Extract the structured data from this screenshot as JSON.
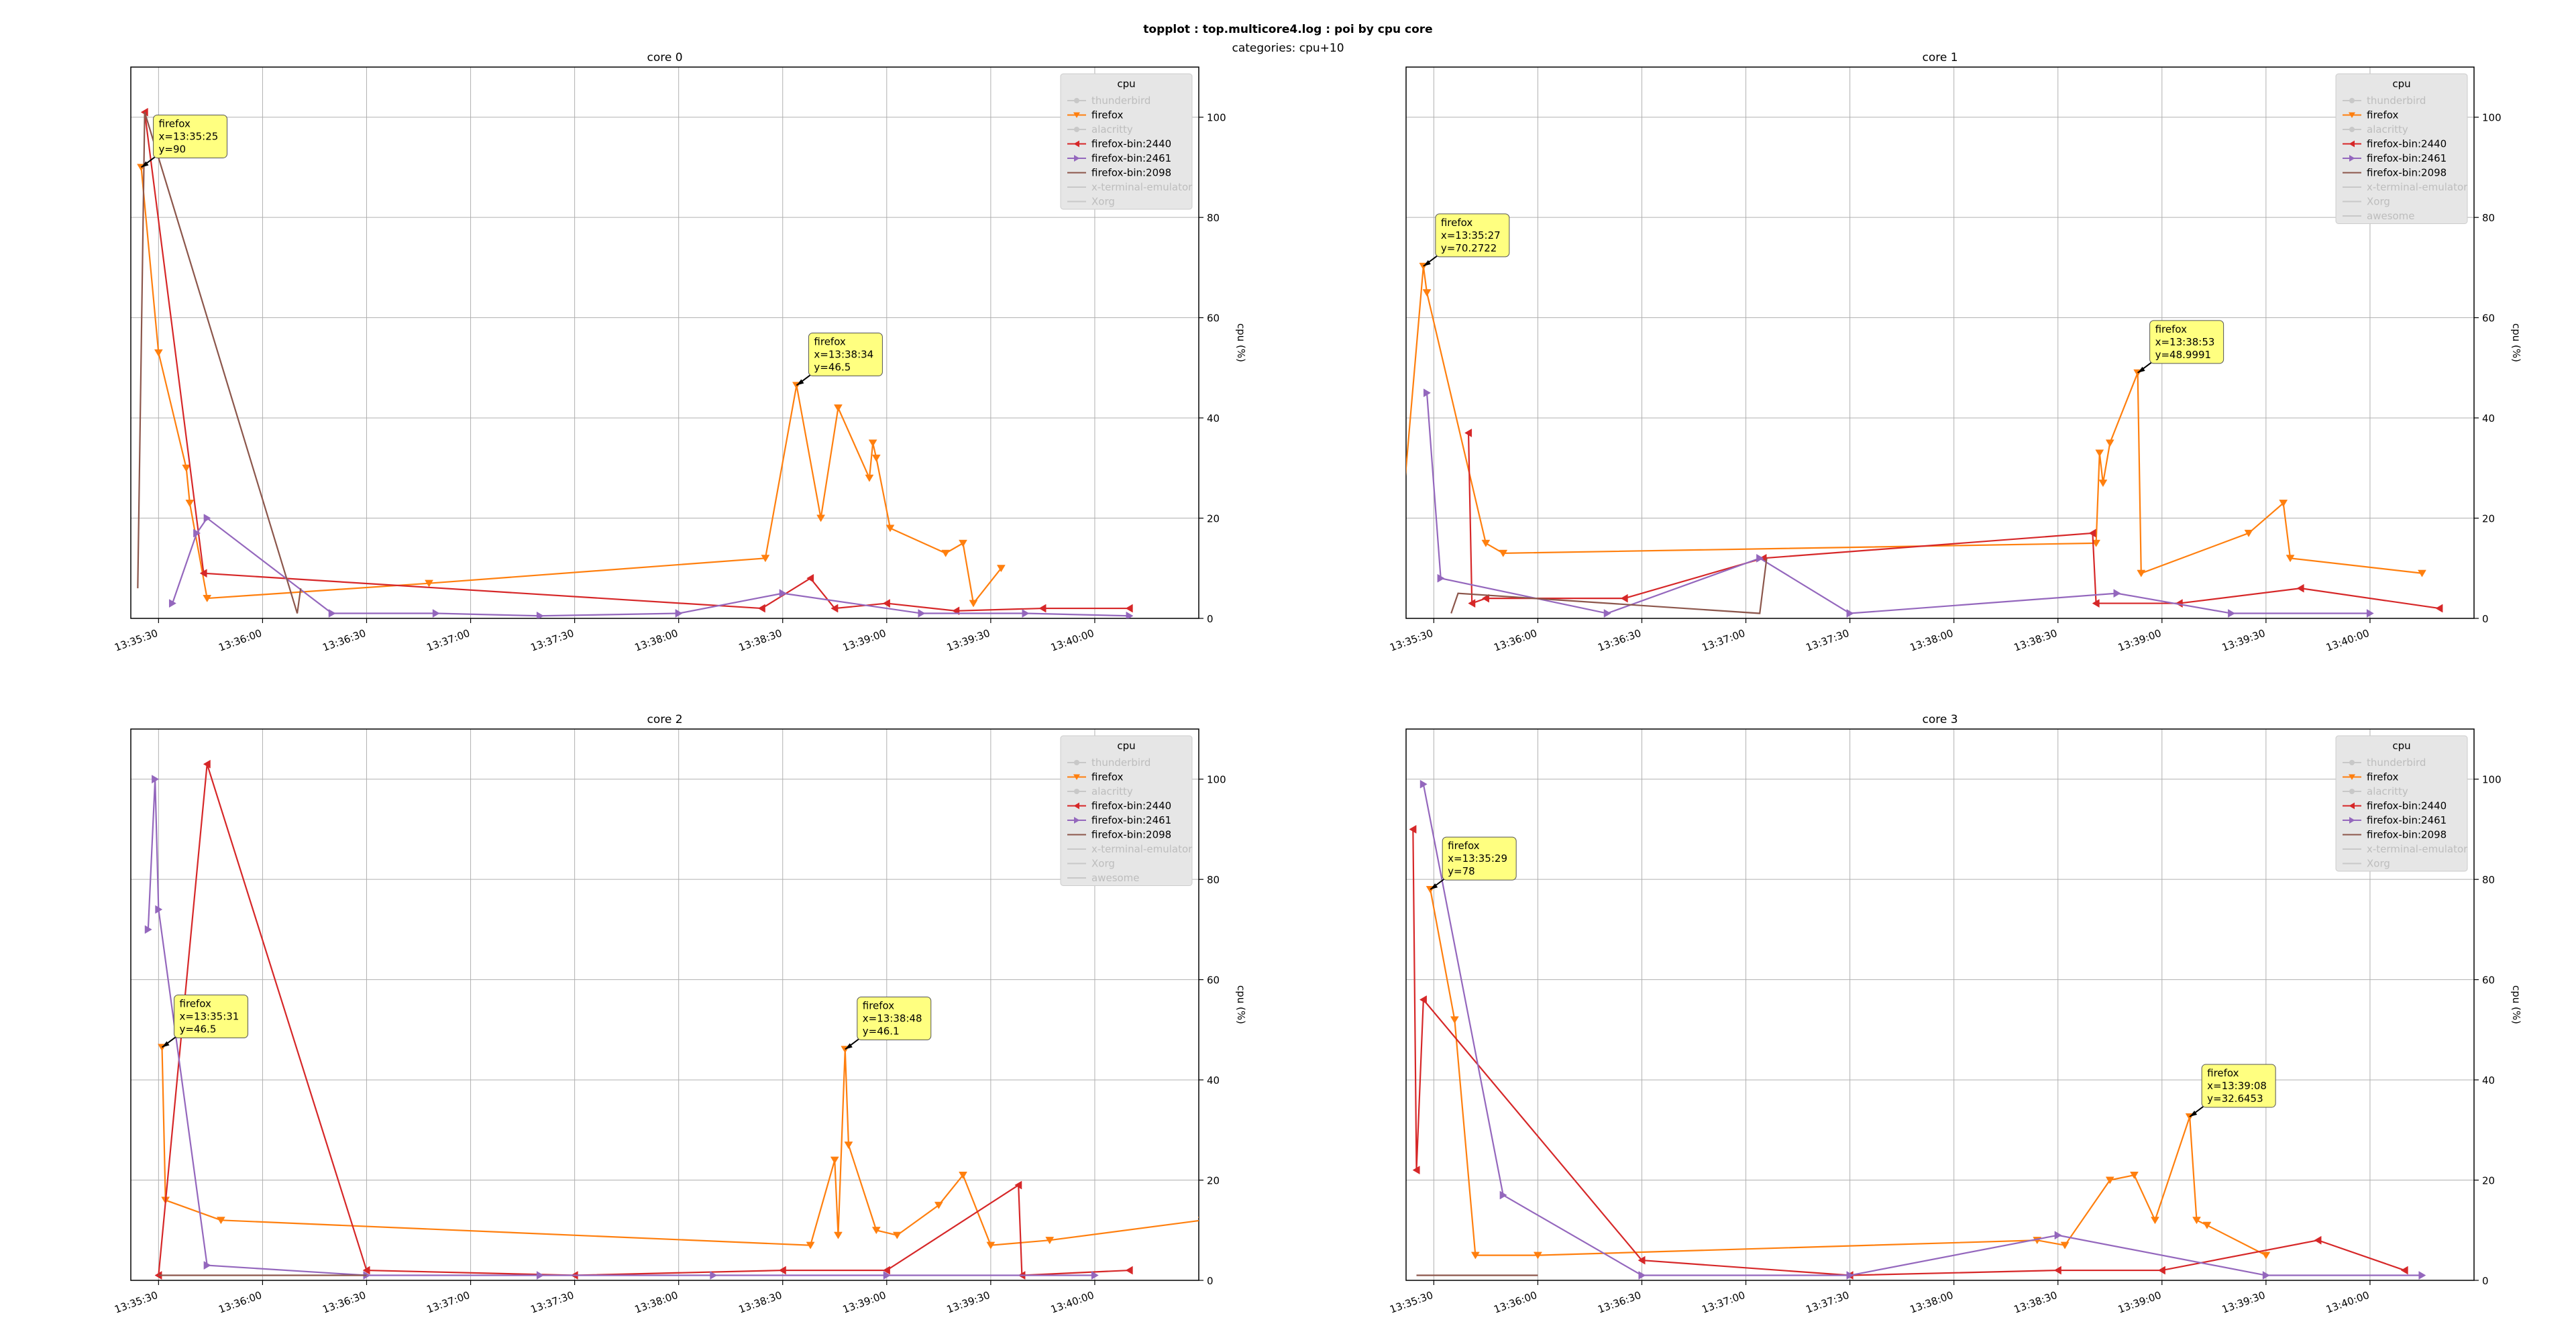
{
  "figure": {
    "title": "topplot : top.multicore4.log : poi by cpu core",
    "subtitle": "categories: cpu+10"
  },
  "colors": {
    "thunderbird": "#7fb2e5",
    "firefox": "#ff7f0e",
    "alacritty": "#98df8a",
    "firefox-bin:2440": "#d62728",
    "firefox-bin:2461": "#9467bd",
    "firefox-bin:2098": "#8c564b",
    "x-terminal-emulator": "#cccccc",
    "Xorg": "#cccccc",
    "awesome": "#cccccc",
    "annotation_fill": "#ffff80",
    "grid": "#b0b0b0"
  },
  "chart_data": [
    {
      "type": "line",
      "title": "core 0",
      "ylabel": "cpu (%)",
      "ylim": [
        0,
        110
      ],
      "xlim": [
        "13:35:30",
        "13:40:30"
      ],
      "xticks": [
        "13:35:30",
        "13:36:00",
        "13:36:30",
        "13:37:00",
        "13:37:30",
        "13:38:00",
        "13:38:30",
        "13:39:00",
        "13:39:30",
        "13:40:00"
      ],
      "yticks": [
        0,
        20,
        40,
        60,
        80,
        100
      ],
      "grid": true,
      "legend": {
        "title": "cpu",
        "placement": "top-right",
        "entries": [
          {
            "label": "thunderbird",
            "active": false
          },
          {
            "label": "firefox",
            "active": true
          },
          {
            "label": "alacritty",
            "active": false
          },
          {
            "label": "firefox-bin:2440",
            "active": true
          },
          {
            "label": "firefox-bin:2461",
            "active": true
          },
          {
            "label": "firefox-bin:2098",
            "active": true
          },
          {
            "label": "x-terminal-emulator",
            "active": false
          },
          {
            "label": "Xorg",
            "active": false
          }
        ]
      },
      "series": [
        {
          "name": "firefox",
          "marker": "down",
          "points": [
            [
              "13:35:25",
              90
            ],
            [
              "13:35:30",
              53
            ],
            [
              "13:35:38",
              30
            ],
            [
              "13:35:39",
              23
            ],
            [
              "13:35:44",
              4
            ],
            [
              "13:36:48",
              7
            ],
            [
              "13:38:25",
              12
            ],
            [
              "13:38:34",
              46.5
            ],
            [
              "13:38:41",
              20
            ],
            [
              "13:38:46",
              42
            ],
            [
              "13:38:55",
              28
            ],
            [
              "13:38:56",
              35
            ],
            [
              "13:38:57",
              32
            ],
            [
              "13:39:01",
              18
            ],
            [
              "13:39:17",
              13
            ],
            [
              "13:39:22",
              15
            ],
            [
              "13:39:25",
              3
            ],
            [
              "13:39:33",
              10
            ]
          ]
        },
        {
          "name": "firefox-bin:2440",
          "marker": "left",
          "points": [
            [
              "13:35:26",
              101
            ],
            [
              "13:35:43",
              9
            ],
            [
              "13:38:24",
              2
            ],
            [
              "13:38:38",
              8
            ],
            [
              "13:38:45",
              2
            ],
            [
              "13:39:00",
              3
            ],
            [
              "13:39:20",
              1.5
            ],
            [
              "13:39:45",
              2
            ],
            [
              "13:40:10",
              2
            ]
          ]
        },
        {
          "name": "firefox-bin:2461",
          "marker": "right",
          "points": [
            [
              "13:35:34",
              3
            ],
            [
              "13:35:41",
              17
            ],
            [
              "13:35:44",
              20
            ],
            [
              "13:36:20",
              1
            ],
            [
              "13:36:50",
              1
            ],
            [
              "13:37:20",
              0.5
            ],
            [
              "13:38:00",
              1
            ],
            [
              "13:38:30",
              5
            ],
            [
              "13:39:10",
              1
            ],
            [
              "13:39:40",
              1
            ],
            [
              "13:40:10",
              0.5
            ]
          ]
        },
        {
          "name": "firefox-bin:2098",
          "marker": "line",
          "points": [
            [
              "13:35:24",
              6
            ],
            [
              "13:35:26",
              101
            ],
            [
              "13:36:10",
              1
            ],
            [
              "13:36:11",
              6
            ]
          ]
        }
      ],
      "annotations": [
        {
          "series": "firefox",
          "x": "13:35:25",
          "y": 90
        },
        {
          "series": "firefox",
          "x": "13:38:34",
          "y": 46.5
        }
      ]
    },
    {
      "type": "line",
      "title": "core 1",
      "ylabel": "cpu (%)",
      "ylim": [
        0,
        110
      ],
      "xlim": [
        "13:35:30",
        "13:40:30"
      ],
      "xticks": [
        "13:35:30",
        "13:36:00",
        "13:36:30",
        "13:37:00",
        "13:37:30",
        "13:38:00",
        "13:38:30",
        "13:39:00",
        "13:39:30",
        "13:40:00"
      ],
      "yticks": [
        0,
        20,
        40,
        60,
        80,
        100
      ],
      "grid": true,
      "legend": {
        "title": "cpu",
        "placement": "top-right",
        "entries": [
          {
            "label": "thunderbird",
            "active": false
          },
          {
            "label": "firefox",
            "active": true
          },
          {
            "label": "alacritty",
            "active": false
          },
          {
            "label": "firefox-bin:2440",
            "active": true
          },
          {
            "label": "firefox-bin:2461",
            "active": true
          },
          {
            "label": "firefox-bin:2098",
            "active": true
          },
          {
            "label": "x-terminal-emulator",
            "active": false
          },
          {
            "label": "Xorg",
            "active": false
          },
          {
            "label": "awesome",
            "active": false
          }
        ]
      },
      "series": [
        {
          "name": "firefox",
          "marker": "down",
          "points": [
            [
              "13:35:20",
              14
            ],
            [
              "13:35:27",
              70.2722
            ],
            [
              "13:35:28",
              65
            ],
            [
              "13:35:45",
              15
            ],
            [
              "13:35:50",
              13
            ],
            [
              "13:38:41",
              15
            ],
            [
              "13:38:42",
              33
            ],
            [
              "13:38:43",
              27
            ],
            [
              "13:38:45",
              35
            ],
            [
              "13:38:53",
              48.9991
            ],
            [
              "13:38:54",
              9
            ],
            [
              "13:39:25",
              17
            ],
            [
              "13:39:35",
              23
            ],
            [
              "13:39:37",
              12
            ],
            [
              "13:40:15",
              9
            ]
          ]
        },
        {
          "name": "firefox-bin:2440",
          "marker": "left",
          "points": [
            [
              "13:35:40",
              37
            ],
            [
              "13:35:41",
              3
            ],
            [
              "13:35:45",
              4
            ],
            [
              "13:36:25",
              4
            ],
            [
              "13:37:05",
              12
            ],
            [
              "13:38:40",
              17
            ],
            [
              "13:38:41",
              3
            ],
            [
              "13:39:05",
              3
            ],
            [
              "13:39:40",
              6
            ],
            [
              "13:40:20",
              2
            ]
          ]
        },
        {
          "name": "firefox-bin:2461",
          "marker": "right",
          "points": [
            [
              "13:35:28",
              45
            ],
            [
              "13:35:32",
              8
            ],
            [
              "13:36:20",
              1
            ],
            [
              "13:37:04",
              12
            ],
            [
              "13:37:30",
              1
            ],
            [
              "13:38:47",
              5
            ],
            [
              "13:39:20",
              1
            ],
            [
              "13:40:00",
              1
            ]
          ]
        },
        {
          "name": "firefox-bin:2098",
          "marker": "line",
          "points": [
            [
              "13:35:35",
              1
            ],
            [
              "13:35:37",
              5
            ],
            [
              "13:37:04",
              1
            ],
            [
              "13:37:06",
              12
            ]
          ]
        }
      ],
      "annotations": [
        {
          "series": "firefox",
          "x": "13:35:27",
          "y": 70.2722
        },
        {
          "series": "firefox",
          "x": "13:38:53",
          "y": 48.9991
        }
      ]
    },
    {
      "type": "line",
      "title": "core 2",
      "ylabel": "cpu (%)",
      "ylim": [
        0,
        110
      ],
      "xlim": [
        "13:35:30",
        "13:40:30"
      ],
      "xticks": [
        "13:35:30",
        "13:36:00",
        "13:36:30",
        "13:37:00",
        "13:37:30",
        "13:38:00",
        "13:38:30",
        "13:39:00",
        "13:39:30",
        "13:40:00"
      ],
      "yticks": [
        0,
        20,
        40,
        60,
        80,
        100
      ],
      "grid": true,
      "legend": {
        "title": "cpu",
        "placement": "top-right",
        "entries": [
          {
            "label": "thunderbird",
            "active": false
          },
          {
            "label": "firefox",
            "active": true
          },
          {
            "label": "alacritty",
            "active": false
          },
          {
            "label": "firefox-bin:2440",
            "active": true
          },
          {
            "label": "firefox-bin:2461",
            "active": true
          },
          {
            "label": "firefox-bin:2098",
            "active": true
          },
          {
            "label": "x-terminal-emulator",
            "active": false
          },
          {
            "label": "Xorg",
            "active": false
          },
          {
            "label": "awesome",
            "active": false
          }
        ]
      },
      "series": [
        {
          "name": "firefox",
          "marker": "down",
          "points": [
            [
              "13:35:31",
              46.5
            ],
            [
              "13:35:32",
              16
            ],
            [
              "13:35:48",
              12
            ],
            [
              "13:38:38",
              7
            ],
            [
              "13:38:45",
              24
            ],
            [
              "13:38:46",
              9
            ],
            [
              "13:38:48",
              46.1
            ],
            [
              "13:38:49",
              27
            ],
            [
              "13:38:57",
              10
            ],
            [
              "13:39:03",
              9
            ],
            [
              "13:39:15",
              15
            ],
            [
              "13:39:22",
              21
            ],
            [
              "13:39:30",
              7
            ],
            [
              "13:39:47",
              8
            ],
            [
              "13:40:31",
              12
            ]
          ]
        },
        {
          "name": "firefox-bin:2440",
          "marker": "left",
          "points": [
            [
              "13:35:30",
              1
            ],
            [
              "13:35:44",
              103
            ],
            [
              "13:36:30",
              2
            ],
            [
              "13:37:30",
              1
            ],
            [
              "13:38:30",
              2
            ],
            [
              "13:39:00",
              2
            ],
            [
              "13:39:38",
              19
            ],
            [
              "13:39:39",
              1
            ],
            [
              "13:40:10",
              2
            ]
          ]
        },
        {
          "name": "firefox-bin:2461",
          "marker": "right",
          "points": [
            [
              "13:35:27",
              70
            ],
            [
              "13:35:29",
              100
            ],
            [
              "13:35:30",
              74
            ],
            [
              "13:35:44",
              3
            ],
            [
              "13:36:30",
              1
            ],
            [
              "13:37:20",
              1
            ],
            [
              "13:38:10",
              1
            ],
            [
              "13:39:00",
              1
            ],
            [
              "13:40:00",
              1
            ]
          ]
        },
        {
          "name": "firefox-bin:2098",
          "marker": "line",
          "points": [
            [
              "13:35:30",
              1
            ],
            [
              "13:36:30",
              1
            ]
          ]
        }
      ],
      "annotations": [
        {
          "series": "firefox",
          "x": "13:35:31",
          "y": 46.5
        },
        {
          "series": "firefox",
          "x": "13:38:48",
          "y": 46.1
        }
      ]
    },
    {
      "type": "line",
      "title": "core 3",
      "ylabel": "cpu (%)",
      "ylim": [
        0,
        110
      ],
      "xlim": [
        "13:35:30",
        "13:40:30"
      ],
      "xticks": [
        "13:35:30",
        "13:36:00",
        "13:36:30",
        "13:37:00",
        "13:37:30",
        "13:38:00",
        "13:38:30",
        "13:39:00",
        "13:39:30",
        "13:40:00"
      ],
      "yticks": [
        0,
        20,
        40,
        60,
        80,
        100
      ],
      "grid": true,
      "legend": {
        "title": "cpu",
        "placement": "top-right",
        "entries": [
          {
            "label": "thunderbird",
            "active": false
          },
          {
            "label": "firefox",
            "active": true
          },
          {
            "label": "alacritty",
            "active": false
          },
          {
            "label": "firefox-bin:2440",
            "active": true
          },
          {
            "label": "firefox-bin:2461",
            "active": true
          },
          {
            "label": "firefox-bin:2098",
            "active": true
          },
          {
            "label": "x-terminal-emulator",
            "active": false
          },
          {
            "label": "Xorg",
            "active": false
          }
        ]
      },
      "series": [
        {
          "name": "firefox",
          "marker": "down",
          "points": [
            [
              "13:35:29",
              78
            ],
            [
              "13:35:36",
              52
            ],
            [
              "13:35:42",
              5
            ],
            [
              "13:36:00",
              5
            ],
            [
              "13:38:24",
              8
            ],
            [
              "13:38:32",
              7
            ],
            [
              "13:38:45",
              20
            ],
            [
              "13:38:52",
              21
            ],
            [
              "13:38:58",
              12
            ],
            [
              "13:39:08",
              32.6453
            ],
            [
              "13:39:10",
              12
            ],
            [
              "13:39:13",
              11
            ],
            [
              "13:39:30",
              5
            ]
          ]
        },
        {
          "name": "firefox-bin:2440",
          "marker": "left",
          "points": [
            [
              "13:35:24",
              90
            ],
            [
              "13:35:25",
              22
            ],
            [
              "13:35:27",
              56
            ],
            [
              "13:36:30",
              4
            ],
            [
              "13:37:30",
              1
            ],
            [
              "13:38:30",
              2
            ],
            [
              "13:39:00",
              2
            ],
            [
              "13:39:45",
              8
            ],
            [
              "13:40:10",
              2
            ]
          ]
        },
        {
          "name": "firefox-bin:2461",
          "marker": "right",
          "points": [
            [
              "13:35:27",
              99
            ],
            [
              "13:35:50",
              17
            ],
            [
              "13:36:30",
              1
            ],
            [
              "13:37:30",
              1
            ],
            [
              "13:38:30",
              9
            ],
            [
              "13:39:30",
              1
            ],
            [
              "13:40:15",
              1
            ]
          ]
        },
        {
          "name": "firefox-bin:2098",
          "marker": "line",
          "points": [
            [
              "13:35:25",
              1
            ],
            [
              "13:36:00",
              1
            ]
          ]
        }
      ],
      "annotations": [
        {
          "series": "firefox",
          "x": "13:35:29",
          "y": 78
        },
        {
          "series": "firefox",
          "x": "13:39:08",
          "y": 32.6453
        }
      ]
    }
  ]
}
